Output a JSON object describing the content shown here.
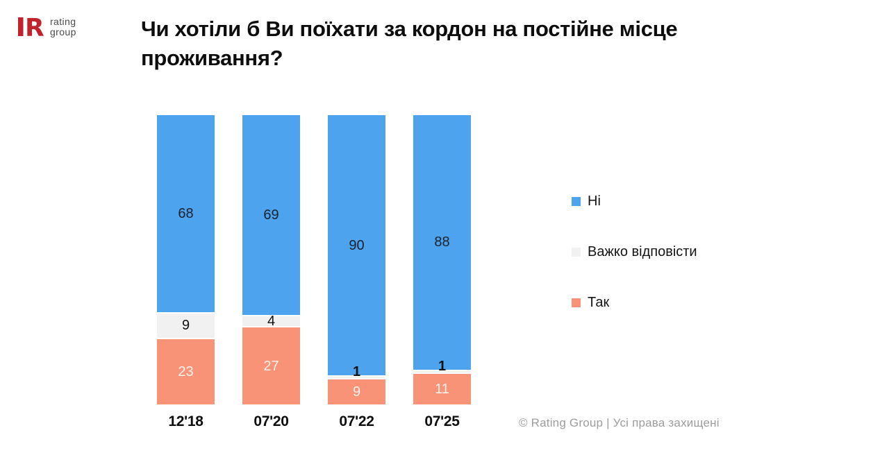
{
  "logo": {
    "mark_letter": "R",
    "brand_line1": "rating",
    "brand_line2": "group",
    "brand_color": "#c2222b",
    "text_color": "#4a4a4a"
  },
  "title": "Чи хотіли б Ви поїхати за кордон на постійне місце проживання?",
  "footer": "© Rating Group | Усі права захищені",
  "chart_data": {
    "type": "bar",
    "stacked": true,
    "orientation": "vertical",
    "categories": [
      "12'18",
      "07'20",
      "07'22",
      "07'25"
    ],
    "series": [
      {
        "name": "Ні",
        "slug": "ni",
        "color": "#4da3ed",
        "label_color": "#18222e",
        "values": [
          68,
          69,
          90,
          88
        ]
      },
      {
        "name": "Важко відповісти",
        "slug": "vazhko-vidpovisty",
        "color": "#f1f1f1",
        "label_color": "#111111",
        "values": [
          9,
          4,
          1,
          1
        ]
      },
      {
        "name": "Так",
        "slug": "tak",
        "color": "#f89377",
        "label_color": "#fdf3ee",
        "values": [
          23,
          27,
          9,
          11
        ]
      }
    ],
    "ylim": [
      0,
      100
    ],
    "value_labels": true,
    "grid": false,
    "axes_visible": false,
    "legend_position": "right"
  }
}
